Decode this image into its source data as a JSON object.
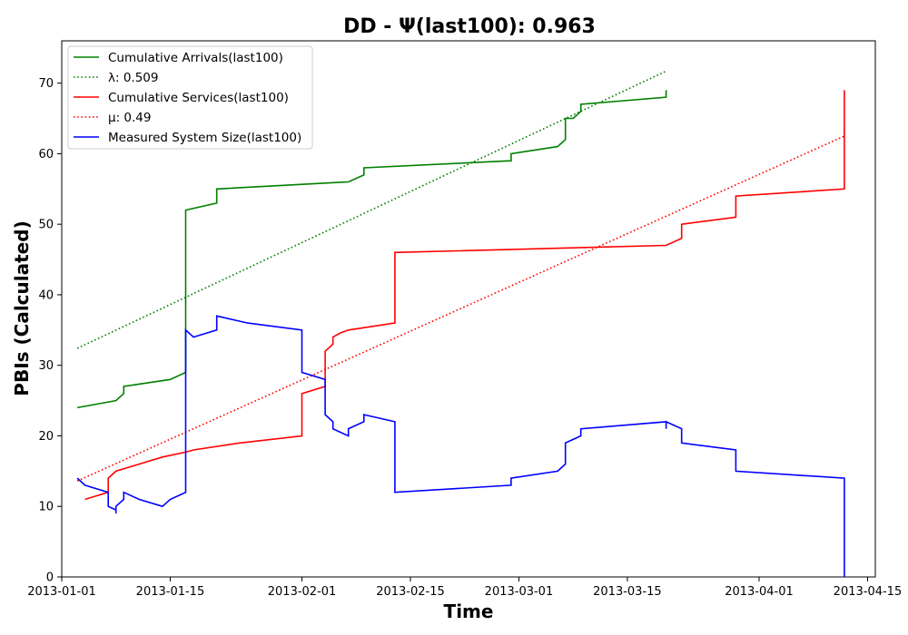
{
  "chart_data": {
    "type": "line",
    "title": "DD -  Ψ(last100): 0.963",
    "xlabel": "Time",
    "ylabel": "PBIs (Calculated)",
    "xlim": [
      "2013-01-01",
      "2013-04-16"
    ],
    "ylim": [
      0,
      76
    ],
    "x_ticks": [
      "2013-01-01",
      "2013-01-15",
      "2013-02-01",
      "2013-02-15",
      "2013-03-01",
      "2013-03-15",
      "2013-04-01",
      "2013-04-15"
    ],
    "y_ticks": [
      0,
      10,
      20,
      30,
      40,
      50,
      60,
      70
    ],
    "grid": false,
    "legend_position": "top-left",
    "series": [
      {
        "name": "Cumulative Arrivals(last100)",
        "legend_label": "Cumulative Arrivals(last100)",
        "color": "#008000",
        "style": "solid",
        "points": [
          [
            "2013-01-03",
            24
          ],
          [
            "2013-01-08",
            25
          ],
          [
            "2013-01-09",
            26
          ],
          [
            "2013-01-09",
            27
          ],
          [
            "2013-01-15",
            28
          ],
          [
            "2013-01-17",
            29
          ],
          [
            "2013-01-17",
            52
          ],
          [
            "2013-01-21",
            53
          ],
          [
            "2013-01-21",
            55
          ],
          [
            "2013-02-07",
            56
          ],
          [
            "2013-02-09",
            57
          ],
          [
            "2013-02-09",
            58
          ],
          [
            "2013-02-28",
            59
          ],
          [
            "2013-02-28",
            60
          ],
          [
            "2013-03-06",
            61
          ],
          [
            "2013-03-07",
            62
          ],
          [
            "2013-03-07",
            65
          ],
          [
            "2013-03-08",
            65
          ],
          [
            "2013-03-09",
            66
          ],
          [
            "2013-03-09",
            67
          ],
          [
            "2013-03-20",
            68
          ],
          [
            "2013-03-20",
            69
          ]
        ]
      },
      {
        "name": "lambda-fit",
        "legend_label": "λ: 0.509",
        "color": "#008000",
        "style": "dotted",
        "points": [
          [
            "2013-01-03",
            32.4
          ],
          [
            "2013-03-20",
            71.7
          ]
        ]
      },
      {
        "name": "Cumulative Services(last100)",
        "legend_label": "Cumulative Services(last100)",
        "color": "#ff0000",
        "style": "solid",
        "points": [
          [
            "2013-01-04",
            11
          ],
          [
            "2013-01-07",
            12
          ],
          [
            "2013-01-07",
            14
          ],
          [
            "2013-01-08",
            15
          ],
          [
            "2013-01-11",
            16
          ],
          [
            "2013-01-14",
            17
          ],
          [
            "2013-01-17",
            17.7
          ],
          [
            "2013-01-18",
            18
          ],
          [
            "2013-01-24",
            19
          ],
          [
            "2013-02-01",
            20
          ],
          [
            "2013-02-01",
            26
          ],
          [
            "2013-02-04",
            27
          ],
          [
            "2013-02-04",
            32
          ],
          [
            "2013-02-05",
            33
          ],
          [
            "2013-02-05",
            34
          ],
          [
            "2013-02-06",
            34.6
          ],
          [
            "2013-02-07",
            35
          ],
          [
            "2013-02-13",
            36
          ],
          [
            "2013-02-13",
            46
          ],
          [
            "2013-03-20",
            47
          ],
          [
            "2013-03-22",
            48
          ],
          [
            "2013-03-22",
            50
          ],
          [
            "2013-03-29",
            51
          ],
          [
            "2013-03-29",
            54
          ],
          [
            "2013-04-12",
            55
          ],
          [
            "2013-04-12",
            69
          ]
        ]
      },
      {
        "name": "mu-fit",
        "legend_label": "μ: 0.49",
        "color": "#ff0000",
        "style": "dotted",
        "points": [
          [
            "2013-01-03",
            13.6
          ],
          [
            "2013-04-12",
            62.5
          ]
        ]
      },
      {
        "name": "Measured System Size(last100)",
        "legend_label": "Measured System Size(last100)",
        "color": "#0000ff",
        "style": "solid",
        "points": [
          [
            "2013-01-03",
            14
          ],
          [
            "2013-01-04",
            13
          ],
          [
            "2013-01-07",
            12
          ],
          [
            "2013-01-07",
            10
          ],
          [
            "2013-01-08",
            9.5
          ],
          [
            "2013-01-08",
            9
          ],
          [
            "2013-01-08",
            10
          ],
          [
            "2013-01-09",
            11
          ],
          [
            "2013-01-09",
            12
          ],
          [
            "2013-01-11",
            11
          ],
          [
            "2013-01-14",
            10
          ],
          [
            "2013-01-15",
            11
          ],
          [
            "2013-01-17",
            12
          ],
          [
            "2013-01-17",
            35
          ],
          [
            "2013-01-18",
            34
          ],
          [
            "2013-01-21",
            35
          ],
          [
            "2013-01-21",
            37
          ],
          [
            "2013-01-25",
            36
          ],
          [
            "2013-02-01",
            35
          ],
          [
            "2013-02-01",
            29
          ],
          [
            "2013-02-04",
            28
          ],
          [
            "2013-02-04",
            23
          ],
          [
            "2013-02-05",
            22
          ],
          [
            "2013-02-05",
            21
          ],
          [
            "2013-02-07",
            20
          ],
          [
            "2013-02-07",
            21
          ],
          [
            "2013-02-09",
            22
          ],
          [
            "2013-02-09",
            23
          ],
          [
            "2013-02-13",
            22
          ],
          [
            "2013-02-13",
            12
          ],
          [
            "2013-02-28",
            13
          ],
          [
            "2013-02-28",
            14
          ],
          [
            "2013-03-06",
            15
          ],
          [
            "2013-03-07",
            16
          ],
          [
            "2013-03-07",
            19
          ],
          [
            "2013-03-08",
            19.5
          ],
          [
            "2013-03-09",
            20
          ],
          [
            "2013-03-09",
            21
          ],
          [
            "2013-03-20",
            22
          ],
          [
            "2013-03-20",
            21
          ],
          [
            "2013-03-20",
            22
          ],
          [
            "2013-03-22",
            21
          ],
          [
            "2013-03-22",
            19
          ],
          [
            "2013-03-29",
            18
          ],
          [
            "2013-03-29",
            15
          ],
          [
            "2013-04-12",
            14
          ],
          [
            "2013-04-12",
            0
          ]
        ]
      }
    ]
  }
}
